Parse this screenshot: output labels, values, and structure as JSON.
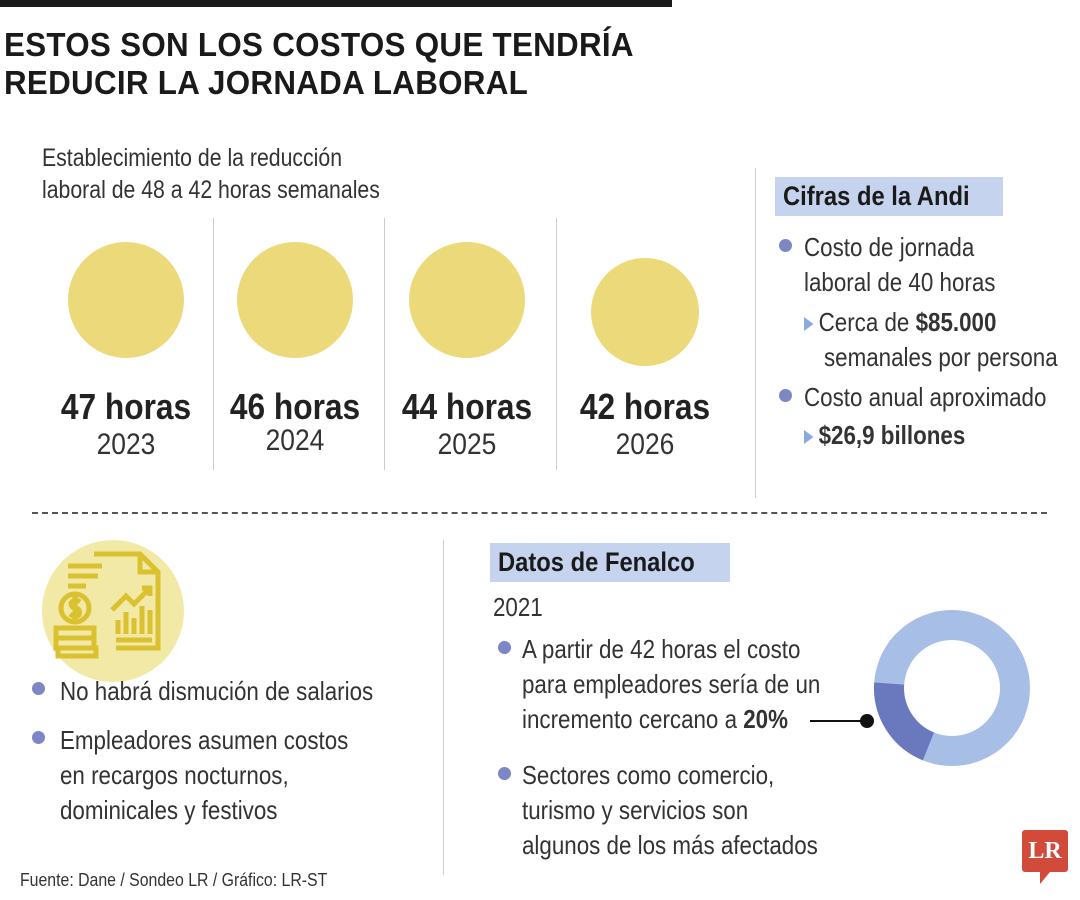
{
  "title": [
    "ESTOS SON LOS COSTOS QUE TENDRÍA",
    "REDUCIR LA JORNADA LABORAL"
  ],
  "subtitle": [
    "Establecimiento de la reducción",
    "laboral de 48 a 42 horas semanales"
  ],
  "timeline": [
    {
      "hours": "47 horas",
      "year": "2023"
    },
    {
      "hours": "46 horas",
      "year": "2024"
    },
    {
      "hours": "44 horas",
      "year": "2025"
    },
    {
      "hours": "42 horas",
      "year": "2026"
    }
  ],
  "andi": {
    "heading": "Cifras de la Andi",
    "item1": [
      "Costo de jornada",
      "laboral de 40 horas"
    ],
    "item1_detail_prefix": "Cerca de ",
    "item1_detail_value": "$85.000",
    "item1_detail_suffix": "semanales por persona",
    "item2": "Costo anual aproximado",
    "item2_detail": "$26,9 billones"
  },
  "left_bullets": {
    "item1": "No habrá dismución de salarios",
    "item2": [
      "Empleadores asumen costos",
      "en recargos nocturnos,",
      "dominicales y festivos"
    ]
  },
  "fenalco": {
    "heading": "Datos de Fenalco",
    "year": "2021",
    "item1": [
      "A partir de 42 horas el costo",
      "para empleadores sería de un",
      "incremento cercano a "
    ],
    "item1_value": "20%",
    "item2": [
      "Sectores como comercio,",
      "turismo y servicios son",
      "algunos de los más afectados"
    ],
    "donut_share_percent": 20
  },
  "colors": {
    "yellow": "#ecd97a",
    "tag": "#c5d3ee",
    "bullet": "#7c87c4",
    "donut_main": "#a7bfe6",
    "donut_highlight": "#6a78bd",
    "logo": "#d24a3a"
  },
  "source": "Fuente: Dane / Sondeo LR / Gráfico: LR-ST",
  "logo": "LR"
}
